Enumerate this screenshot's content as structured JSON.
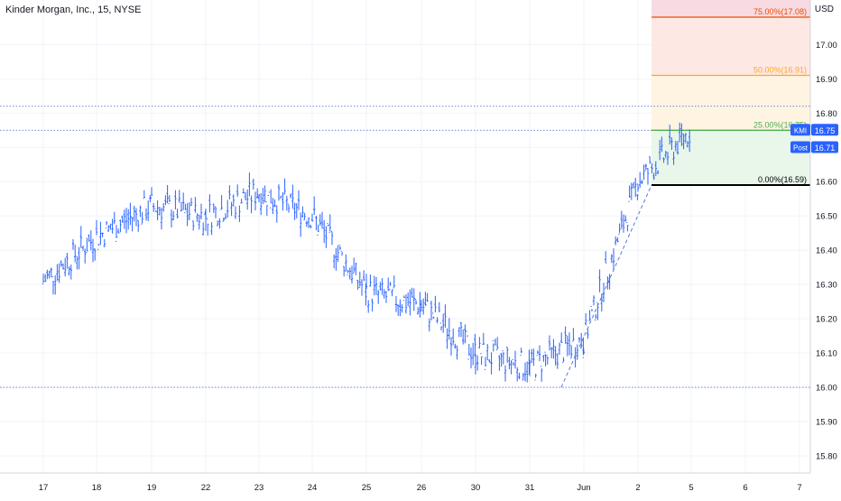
{
  "header": {
    "symbol_title": "Kinder Morgan, Inc., 15, NYSE",
    "currency": "USD"
  },
  "chart_data": {
    "type": "ohlc",
    "title": "Kinder Morgan, Inc., 15, NYSE",
    "xlabel": "",
    "ylabel": "",
    "ylim": [
      15.75,
      17.13
    ],
    "x_ticks": [
      "17",
      "18",
      "19",
      "22",
      "23",
      "24",
      "25",
      "26",
      "30",
      "31",
      "Jun",
      "2",
      "5",
      "6",
      "7"
    ],
    "y_ticks": [
      15.8,
      15.9,
      16.0,
      16.1,
      16.2,
      16.3,
      16.4,
      16.5,
      16.6,
      16.7,
      16.8,
      16.9,
      17.0
    ],
    "grid": true,
    "horizontal_levels": [
      16.0,
      16.82
    ],
    "series": [
      {
        "values": [
          [
            "17",
            16.31
          ],
          [
            "18",
            16.44
          ],
          [
            "19",
            16.53
          ],
          [
            "22",
            16.5
          ],
          [
            "23",
            16.57
          ],
          [
            "24",
            16.5
          ],
          [
            "25",
            16.28
          ],
          [
            "26",
            16.24
          ],
          [
            "30",
            16.1
          ],
          [
            "31",
            16.06
          ],
          [
            "Jun",
            16.14
          ],
          [
            "2",
            16.6
          ],
          [
            "5",
            16.75
          ]
        ]
      }
    ],
    "fibonacci": {
      "levels": [
        {
          "label": "0.00%(16.59)",
          "value": 16.59,
          "color": "#000000"
        },
        {
          "label": "25.00%(16.75)",
          "value": 16.75,
          "color": "#4caf50"
        },
        {
          "label": "50.00%(16.91)",
          "value": 16.91,
          "color": "#ffa726"
        },
        {
          "label": "75.00%(17.08)",
          "value": 17.08,
          "color": "#e65100"
        }
      ],
      "zone_colors": [
        "#e8f5e9",
        "#fff3e0",
        "#fde7e3",
        "#f8d8e0"
      ]
    },
    "price_tags": [
      {
        "label": "KMI",
        "value": "16.75",
        "color": "#2962ff"
      },
      {
        "label": "Post",
        "value": "16.71",
        "color": "#2962ff"
      }
    ],
    "bar_color": "#2962ff"
  }
}
